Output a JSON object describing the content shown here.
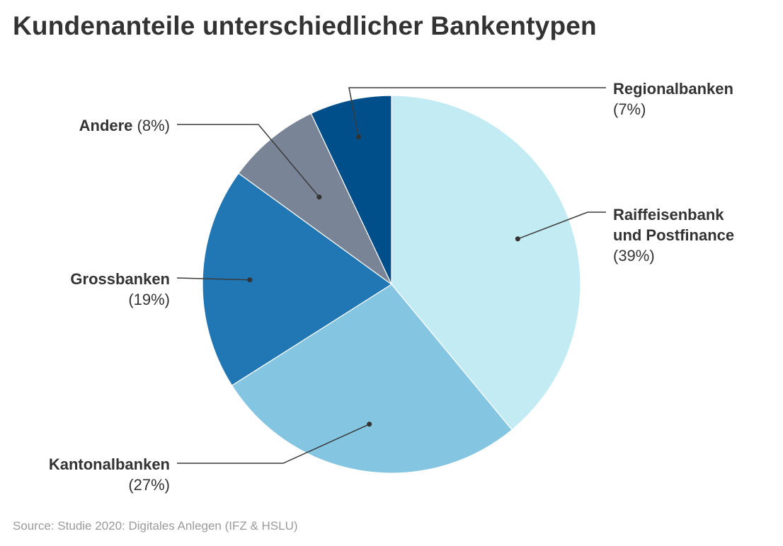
{
  "title": "Kundenanteile unterschiedlicher Bankentypen",
  "source": "Source: Studie 2020: Digitales Anlegen (IFZ & HSLU)",
  "chart_data": {
    "type": "pie",
    "title": "Kundenanteile unterschiedlicher Bankentypen",
    "slices": [
      {
        "label": "Raiffeisenbank und Postfinance",
        "value": 39,
        "value_label": "(39%)",
        "color": "#c3ebf3"
      },
      {
        "label": "Kantonalbanken",
        "value": 27,
        "value_label": "(27%)",
        "color": "#84c5e2"
      },
      {
        "label": "Grossbanken",
        "value": 19,
        "value_label": "(19%)",
        "color": "#2177b4"
      },
      {
        "label": "Andere",
        "value": 8,
        "value_label": "(8%)",
        "color": "#798497"
      },
      {
        "label": "Regionalbanken",
        "value": 7,
        "value_label": "(7%)",
        "color": "#004f8a"
      }
    ],
    "start": "12 o'clock",
    "direction": "clockwise"
  }
}
